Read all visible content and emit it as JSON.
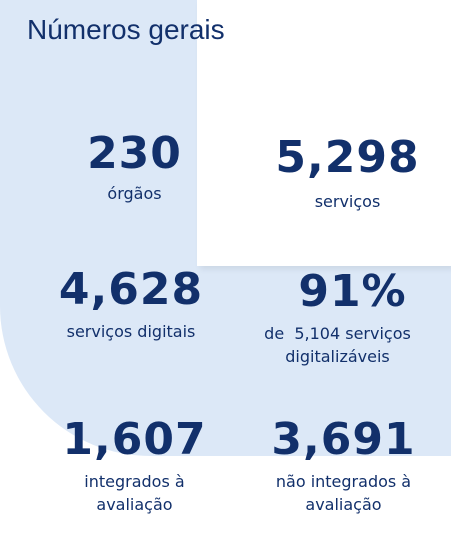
{
  "header": {
    "title": "Números gerais"
  },
  "stats": [
    {
      "value": "230",
      "label": "órgãos"
    },
    {
      "value": "5,298",
      "label": "serviços"
    },
    {
      "value": "4,628",
      "label": "serviços digitais"
    },
    {
      "value": "91%",
      "label_prefix": "de",
      "label_count": "5,104",
      "label_line1_suffix": "serviços",
      "label_line2": "digitalizáveis"
    },
    {
      "value": "1,607",
      "label_line1": "integrados à",
      "label_line2": "avaliação"
    },
    {
      "value": "3,691",
      "label_line1": "não integrados à",
      "label_line2": "avaliação"
    }
  ],
  "colors": {
    "text": "#12306b",
    "panel": "#dce8f7",
    "background": "#ffffff"
  }
}
